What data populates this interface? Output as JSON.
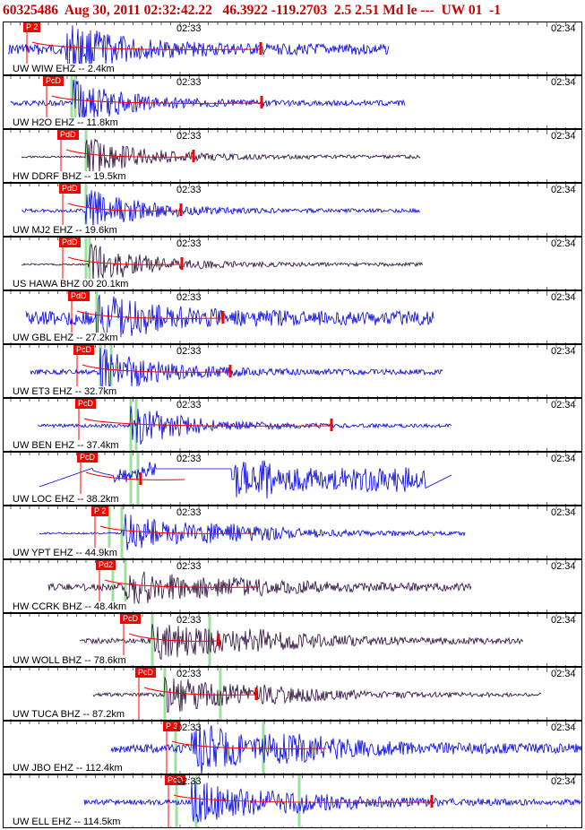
{
  "header": {
    "event_id": "60325486",
    "datetime": "Aug 30, 2011 02:32:42.22",
    "lat": "46.3922",
    "lon": "-119.2703",
    "mag1": "2.5",
    "mag2": "2.51",
    "mag_type": "Md",
    "status": "le ---",
    "network": "UW",
    "version": "01",
    "extra": "-1"
  },
  "time_labels": {
    "t1": "02:33",
    "t2": "02:34"
  },
  "colors": {
    "blue": "#0000e0",
    "dark": "#2a0a3a",
    "red": "#ff0000",
    "green": "#9fe09f"
  },
  "traces": [
    {
      "label": "UW WIW EHZ -- 2.4km",
      "pick": "P 2",
      "color": "blue"
    },
    {
      "label": "UW H2O EHZ -- 11.8km",
      "pick": "PcD",
      "color": "blue"
    },
    {
      "label": "HW DDRF BHZ -- 19.5km",
      "pick": "PdD",
      "color": "dark"
    },
    {
      "label": "UW MJ2 EHZ -- 19.6km",
      "pick": "PdD",
      "color": "blue"
    },
    {
      "label": "US HAWA BHZ 00 20.1km",
      "pick": "PdD",
      "color": "dark"
    },
    {
      "label": "UW GBL EHZ -- 27.2km",
      "pick": "PdD",
      "color": "blue"
    },
    {
      "label": "UW ET3 EHZ -- 32.7km",
      "pick": "PcD",
      "color": "blue"
    },
    {
      "label": "UW BEN EHZ -- 37.4km",
      "pick": "PcD",
      "color": "blue"
    },
    {
      "label": "UW LOC EHZ -- 38.2km",
      "pick": "PcD",
      "color": "blue"
    },
    {
      "label": "UW YPT EHZ -- 44.9km",
      "pick": "P 2",
      "color": "blue"
    },
    {
      "label": "HW CCRK BHZ -- 48.4km",
      "pick": "Pd2",
      "color": "dark"
    },
    {
      "label": "UW WOLL BHZ -- 78.6km",
      "pick": "PcD",
      "color": "dark"
    },
    {
      "label": "UW TUCA BHZ -- 87.2km",
      "pick": "PcD",
      "color": "dark"
    },
    {
      "label": "UW JBO EHZ -- 112.4km",
      "pick": "P 3",
      "color": "blue"
    },
    {
      "label": "UW ELL EHZ -- 114.5km",
      "pick": "PcD",
      "color": "blue"
    }
  ]
}
